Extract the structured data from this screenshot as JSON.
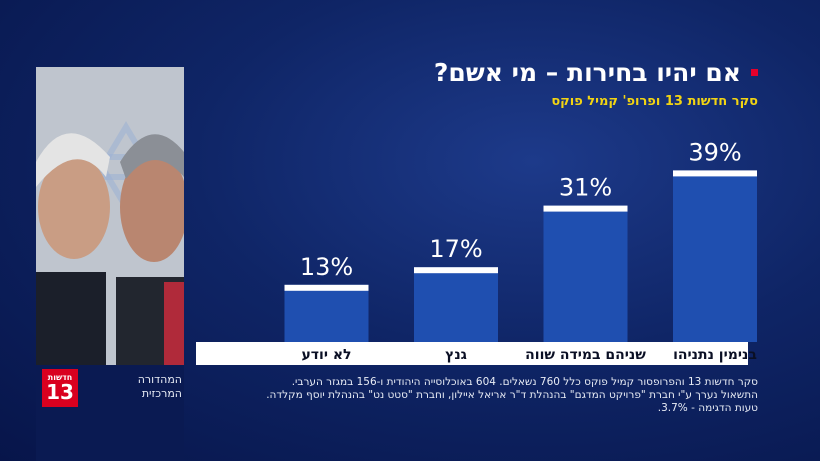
{
  "header": {
    "title": "אם יהיו בחירות – מי אשם?",
    "subtitle": "סקר חדשות 13 ופרופ' קמיל פוקס",
    "accent_color": "#e4002b",
    "subtitle_color": "#f2d413"
  },
  "chart_data": {
    "type": "bar",
    "categories": [
      "בנימין נתניהו",
      "שניהם במידה שווה",
      "גנץ",
      "לא יודע"
    ],
    "values": [
      39,
      31,
      17,
      13
    ],
    "value_labels": [
      "39%",
      "31%",
      "17%",
      "13%"
    ],
    "ylim": [
      0,
      45
    ],
    "bar_color": "#1f4fb0",
    "cap_color": "#ffffff",
    "grid": false
  },
  "footer": {
    "logo_small": "חדשות",
    "logo_number": "13",
    "logo_caption_line1": "המהדורה",
    "logo_caption_line2": "המרכזית",
    "note_line1": "סקר חדשות 13 והפרופסור קמיל פוקס כלל 760 נשאלים. 604 באוכלוסייה היהודית ו-156 במגזר הערבי.",
    "note_line2": "התשאול נערך ע\"י חברת \"פרויקט המדגם\" בהנהלת ד\"ר אריאל איילון, וחברת \"סטט נט\" בהנהלת יוסף מקלדה.",
    "note_line3": "טעות הדגימה - 3.7%."
  }
}
